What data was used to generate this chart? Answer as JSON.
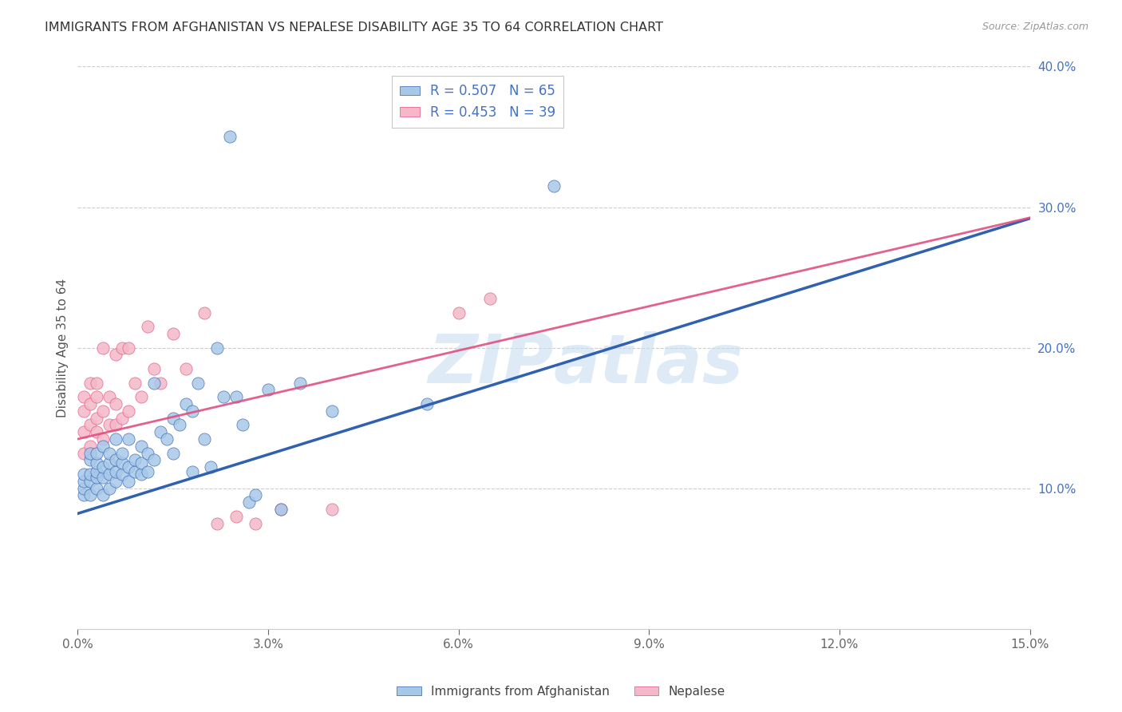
{
  "title": "IMMIGRANTS FROM AFGHANISTAN VS NEPALESE DISABILITY AGE 35 TO 64 CORRELATION CHART",
  "source": "Source: ZipAtlas.com",
  "ylabel": "Disability Age 35 to 64",
  "xlim": [
    0.0,
    0.15
  ],
  "ylim": [
    0.0,
    0.4
  ],
  "xticks": [
    0.0,
    0.03,
    0.06,
    0.09,
    0.12,
    0.15
  ],
  "yticks": [
    0.1,
    0.2,
    0.3,
    0.4
  ],
  "legend_label_blue": "R = 0.507   N = 65",
  "legend_label_pink": "R = 0.453   N = 39",
  "legend_bottom_blue": "Immigrants from Afghanistan",
  "legend_bottom_pink": "Nepalese",
  "blue_color": "#a8c8e8",
  "pink_color": "#f4b8c8",
  "blue_line_color": "#3060b0",
  "pink_line_color": "#e05080",
  "blue_intercept": 0.082,
  "blue_slope": 1.4,
  "pink_intercept": 0.135,
  "pink_slope": 1.05,
  "blue_scatter_x": [
    0.001,
    0.001,
    0.001,
    0.001,
    0.002,
    0.002,
    0.002,
    0.002,
    0.002,
    0.003,
    0.003,
    0.003,
    0.003,
    0.003,
    0.004,
    0.004,
    0.004,
    0.004,
    0.005,
    0.005,
    0.005,
    0.005,
    0.006,
    0.006,
    0.006,
    0.006,
    0.007,
    0.007,
    0.007,
    0.008,
    0.008,
    0.008,
    0.009,
    0.009,
    0.01,
    0.01,
    0.01,
    0.011,
    0.011,
    0.012,
    0.012,
    0.013,
    0.014,
    0.015,
    0.015,
    0.016,
    0.017,
    0.018,
    0.018,
    0.019,
    0.02,
    0.021,
    0.022,
    0.023,
    0.024,
    0.025,
    0.026,
    0.027,
    0.028,
    0.03,
    0.032,
    0.035,
    0.04,
    0.055,
    0.075
  ],
  "blue_scatter_y": [
    0.095,
    0.1,
    0.105,
    0.11,
    0.095,
    0.105,
    0.11,
    0.12,
    0.125,
    0.1,
    0.108,
    0.112,
    0.118,
    0.125,
    0.095,
    0.108,
    0.115,
    0.13,
    0.1,
    0.11,
    0.118,
    0.125,
    0.105,
    0.112,
    0.12,
    0.135,
    0.11,
    0.118,
    0.125,
    0.105,
    0.115,
    0.135,
    0.112,
    0.12,
    0.11,
    0.118,
    0.13,
    0.112,
    0.125,
    0.12,
    0.175,
    0.14,
    0.135,
    0.125,
    0.15,
    0.145,
    0.16,
    0.112,
    0.155,
    0.175,
    0.135,
    0.115,
    0.2,
    0.165,
    0.35,
    0.165,
    0.145,
    0.09,
    0.095,
    0.17,
    0.085,
    0.175,
    0.155,
    0.16,
    0.315
  ],
  "pink_scatter_x": [
    0.001,
    0.001,
    0.001,
    0.001,
    0.002,
    0.002,
    0.002,
    0.002,
    0.003,
    0.003,
    0.003,
    0.003,
    0.004,
    0.004,
    0.004,
    0.005,
    0.005,
    0.006,
    0.006,
    0.006,
    0.007,
    0.007,
    0.008,
    0.008,
    0.009,
    0.01,
    0.011,
    0.012,
    0.013,
    0.015,
    0.017,
    0.02,
    0.022,
    0.025,
    0.028,
    0.032,
    0.04,
    0.06,
    0.065
  ],
  "pink_scatter_y": [
    0.125,
    0.14,
    0.155,
    0.165,
    0.13,
    0.145,
    0.16,
    0.175,
    0.14,
    0.15,
    0.165,
    0.175,
    0.135,
    0.155,
    0.2,
    0.145,
    0.165,
    0.145,
    0.16,
    0.195,
    0.15,
    0.2,
    0.155,
    0.2,
    0.175,
    0.165,
    0.215,
    0.185,
    0.175,
    0.21,
    0.185,
    0.225,
    0.075,
    0.08,
    0.075,
    0.085,
    0.085,
    0.225,
    0.235
  ],
  "background_color": "#ffffff",
  "grid_color": "#cccccc"
}
